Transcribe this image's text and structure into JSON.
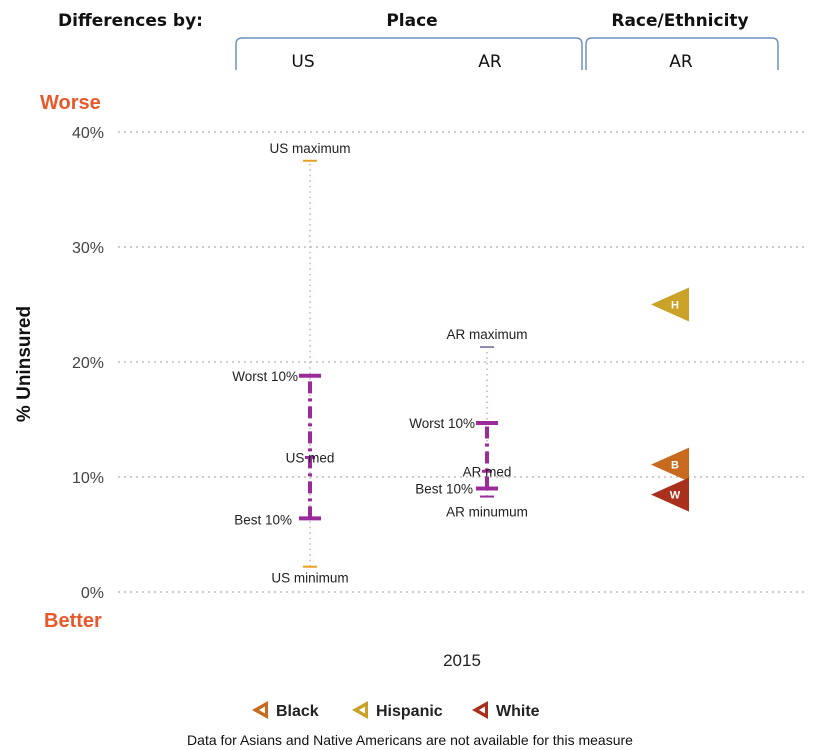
{
  "header": {
    "differences_by": "Differences by:",
    "place": "Place",
    "race_ethnicity": "Race/Ethnicity",
    "place_groups": [
      "US",
      "AR"
    ],
    "race_group": "AR"
  },
  "chart_data": {
    "type": "range-dot",
    "ylabel": "% Uninsured",
    "y_top_label": "Worse",
    "y_bottom_label": "Better",
    "ylim": [
      0,
      40
    ],
    "yticks": [
      0,
      10,
      20,
      30,
      40
    ],
    "ytick_labels": [
      "0%",
      "10%",
      "20%",
      "30%",
      "40%"
    ],
    "grid": true,
    "x_label": "2015",
    "places": [
      {
        "name": "US",
        "minimum": 2.2,
        "best10": 6.4,
        "median": 11.7,
        "worst10": 18.8,
        "maximum": 37.5,
        "labels": {
          "maximum": "US maximum",
          "worst10": "Worst 10%",
          "median": "US med",
          "best10": "Best 10%",
          "minimum": "US minimum"
        }
      },
      {
        "name": "AR",
        "minimum": 8.3,
        "best10": 9.0,
        "median": 10.5,
        "worst10": 14.7,
        "maximum": 21.3,
        "labels": {
          "maximum": "AR maximum",
          "worst10": "Worst 10%",
          "median": "AR med",
          "best10": "Best 10%",
          "minimum": "AR minumum"
        }
      }
    ],
    "race_ethnicity": [
      {
        "name": "Hispanic",
        "code": "H",
        "value": 25.0,
        "color": "#c9a227"
      },
      {
        "name": "Black",
        "code": "B",
        "value": 10.9,
        "color": "#c86a1e"
      },
      {
        "name": "White",
        "code": "W",
        "value": 8.9,
        "color": "#a8301c"
      }
    ],
    "range_color": "#9b2a9b",
    "min_max_color": "#e8a020",
    "worse_better_color": "#e8582a"
  },
  "legend": [
    {
      "name": "Black",
      "color": "#c86a1e"
    },
    {
      "name": "Hispanic",
      "color": "#c9a227"
    },
    {
      "name": "White",
      "color": "#a8301c"
    }
  ],
  "footnote": "Data for Asians and Native Americans are not available for this measure"
}
